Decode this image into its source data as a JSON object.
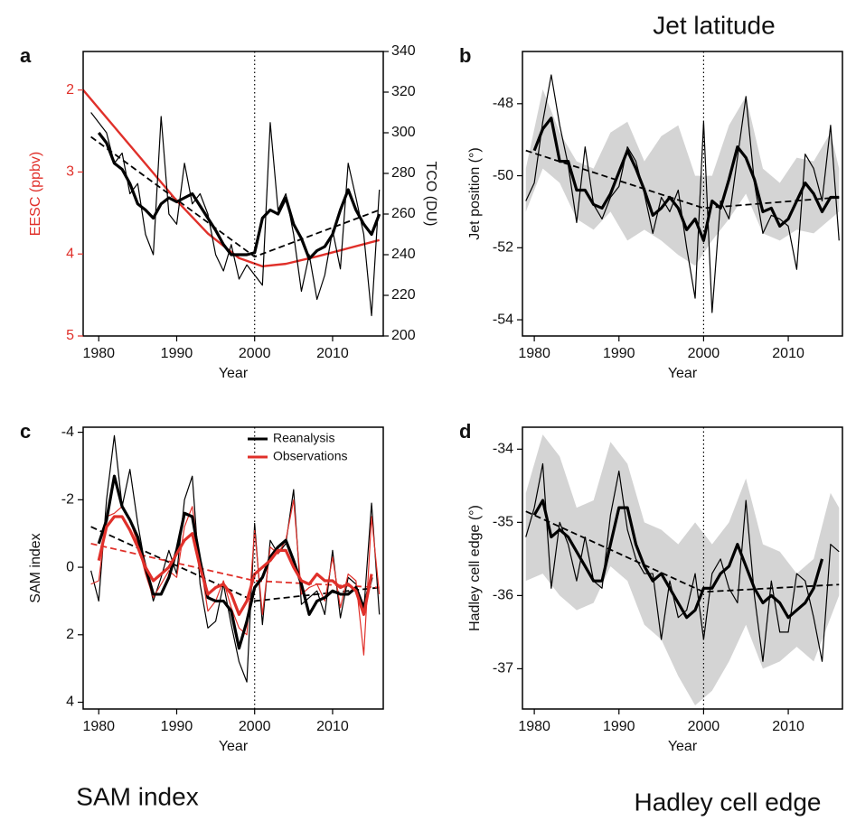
{
  "captions": [
    "Jet latitude",
    "SAM index",
    "Hadley cell edge"
  ],
  "chart_data": [
    {
      "type": "line",
      "label": "a",
      "xlabel": "Year",
      "ylabel": "EESC (ppbv)",
      "y2label": "TCO (DU)",
      "ycolor": "#e0302a",
      "xlim": [
        1978,
        2016.5
      ],
      "xticks": [
        1980,
        1990,
        2000,
        2010
      ],
      "ylim": [
        1.53,
        5
      ],
      "y_inverted": true,
      "yticks": [
        2,
        3,
        4,
        5
      ],
      "y2lim": [
        200,
        340
      ],
      "y2ticks": [
        200,
        220,
        240,
        260,
        280,
        300,
        320,
        340
      ],
      "vline": 2000,
      "x": [
        1979,
        1980,
        1981,
        1982,
        1983,
        1984,
        1985,
        1986,
        1987,
        1988,
        1989,
        1990,
        1991,
        1992,
        1993,
        1994,
        1995,
        1996,
        1997,
        1998,
        1999,
        2000,
        2001,
        2002,
        2003,
        2004,
        2005,
        2006,
        2007,
        2008,
        2009,
        2010,
        2011,
        2012,
        2013,
        2014,
        2015,
        2016
      ],
      "series": [
        {
          "style": "dashed",
          "color": "#000000",
          "axis": "y2",
          "x": [
            1979,
            2000,
            2016
          ],
          "values": [
            298,
            239,
            262
          ]
        },
        {
          "style": "solid",
          "color": "#e0302a",
          "x": [
            1978,
            1982,
            1986,
            1990,
            1994,
            1998,
            2001,
            2004,
            2008,
            2012,
            2016
          ],
          "values": [
            2.0,
            2.45,
            2.9,
            3.35,
            3.75,
            4.05,
            4.15,
            4.12,
            4.03,
            3.93,
            3.83
          ]
        },
        {
          "style": "thin",
          "color": "#000000",
          "axis": "y2",
          "values": [
            310,
            305,
            300,
            285,
            290,
            270,
            275,
            250,
            240,
            308,
            260,
            255,
            285,
            265,
            270,
            260,
            240,
            232,
            245,
            228,
            235,
            230,
            225,
            305,
            262,
            270,
            250,
            222,
            240,
            218,
            230,
            252,
            233,
            285,
            268,
            250,
            210,
            272
          ]
        },
        {
          "style": "thick",
          "color": "#000000",
          "axis": "y2",
          "values": [
            null,
            300,
            295,
            285,
            282,
            275,
            265,
            262,
            258,
            265,
            268,
            266,
            268,
            270,
            264,
            258,
            252,
            245,
            240,
            240,
            240,
            241,
            258,
            262,
            260,
            268,
            255,
            248,
            238,
            242,
            244,
            250,
            262,
            272,
            262,
            255,
            250,
            260
          ]
        }
      ]
    },
    {
      "type": "line",
      "label": "b",
      "xlabel": "Year",
      "ylabel": "Jet position (°)",
      "xlim": [
        1978.6,
        2016.4
      ],
      "xticks": [
        1980,
        1990,
        2000,
        2010
      ],
      "ylim": [
        -54.45,
        -46.55
      ],
      "yticks": [
        -54,
        -52,
        -50,
        -48
      ],
      "vline": 2000,
      "x": [
        1979,
        1980,
        1981,
        1982,
        1983,
        1984,
        1985,
        1986,
        1987,
        1988,
        1989,
        1990,
        1991,
        1992,
        1993,
        1994,
        1995,
        1996,
        1997,
        1998,
        1999,
        2000,
        2001,
        2002,
        2003,
        2004,
        2005,
        2006,
        2007,
        2008,
        2009,
        2010,
        2011,
        2012,
        2013,
        2014,
        2015,
        2016
      ],
      "bands": [
        {
          "color": "#d4d4d4",
          "x": [
            1979,
            1981,
            1983,
            1985,
            1987,
            1989,
            1991,
            1993,
            1995,
            1997,
            1999,
            2001,
            2003,
            2005,
            2007,
            2009,
            2011,
            2013,
            2015,
            2016
          ],
          "lower": [
            -51.0,
            -49.8,
            -50.2,
            -51.2,
            -51.5,
            -51.0,
            -51.8,
            -51.5,
            -51.8,
            -52.2,
            -52.5,
            -51.8,
            -51.2,
            -50.5,
            -51.6,
            -51.8,
            -51.5,
            -51.6,
            -51.2,
            -51.0
          ],
          "upper": [
            -49.8,
            -47.6,
            -48.8,
            -49.6,
            -49.8,
            -48.8,
            -48.5,
            -49.6,
            -48.9,
            -48.6,
            -50.0,
            -50.0,
            -48.6,
            -47.8,
            -49.8,
            -50.2,
            -49.5,
            -49.6,
            -48.8,
            -49.8
          ]
        }
      ],
      "series": [
        {
          "style": "dashed",
          "color": "#000000",
          "x": [
            1979,
            2000,
            2016
          ],
          "values": [
            -49.3,
            -50.9,
            -50.6
          ]
        },
        {
          "style": "thin",
          "color": "#000000",
          "values": [
            -50.7,
            -50.2,
            -48.5,
            -47.2,
            -48.6,
            -49.7,
            -51.3,
            -49.2,
            -50.8,
            -51.2,
            -50.6,
            -50.3,
            -49.2,
            -49.6,
            -50.5,
            -51.6,
            -50.6,
            -51.0,
            -50.4,
            -52.0,
            -53.4,
            -48.5,
            -53.8,
            -50.7,
            -51.2,
            -49.5,
            -47.8,
            -50.2,
            -51.6,
            -51.1,
            -51.2,
            -51.4,
            -52.6,
            -49.4,
            -49.8,
            -50.7,
            -48.6,
            -51.8
          ]
        },
        {
          "style": "thick",
          "color": "#000000",
          "values": [
            null,
            -49.3,
            -48.7,
            -48.4,
            -49.6,
            -49.6,
            -50.4,
            -50.4,
            -50.8,
            -50.9,
            -50.5,
            -49.9,
            -49.3,
            -49.8,
            -50.4,
            -51.1,
            -50.9,
            -50.6,
            -50.9,
            -51.5,
            -51.2,
            -51.8,
            -50.7,
            -50.9,
            -50.1,
            -49.2,
            -49.5,
            -50.1,
            -51.0,
            -50.9,
            -51.4,
            -51.2,
            -50.7,
            -50.2,
            -50.5,
            -51.0,
            -50.6,
            -50.6
          ]
        }
      ]
    },
    {
      "type": "line",
      "label": "c",
      "xlabel": "Year",
      "ylabel": "SAM index",
      "xlim": [
        1978,
        2016.5
      ],
      "xticks": [
        1980,
        1990,
        2000,
        2010
      ],
      "ylim": [
        -4.15,
        4.2
      ],
      "y_inverted": true,
      "yticks": [
        -4,
        -2,
        0,
        2,
        4
      ],
      "vline": 2000,
      "legend": "upper right",
      "x": [
        1979,
        1980,
        1981,
        1982,
        1983,
        1984,
        1985,
        1986,
        1987,
        1988,
        1989,
        1990,
        1991,
        1992,
        1993,
        1994,
        1995,
        1996,
        1997,
        1998,
        1999,
        2000,
        2001,
        2002,
        2003,
        2004,
        2005,
        2006,
        2007,
        2008,
        2009,
        2010,
        2011,
        2012,
        2013,
        2014,
        2015,
        2016
      ],
      "series": [
        {
          "style": "dashed",
          "color": "#000000",
          "x": [
            1979,
            2000,
            2016
          ],
          "values": [
            -1.2,
            1.0,
            0.6
          ]
        },
        {
          "style": "dashed",
          "color": "#e0302a",
          "x": [
            1979,
            2000,
            2016
          ],
          "values": [
            -0.7,
            0.4,
            0.6
          ]
        },
        {
          "style": "thin",
          "color": "#000000",
          "values": [
            0.1,
            1.0,
            -2.0,
            -3.9,
            -1.8,
            -2.9,
            -1.3,
            0.0,
            1.0,
            0.3,
            -0.5,
            0.2,
            -2.0,
            -2.7,
            0.5,
            1.8,
            1.6,
            0.5,
            1.7,
            2.8,
            3.4,
            -1.3,
            1.7,
            -0.8,
            -0.4,
            -0.7,
            -2.3,
            1.1,
            0.9,
            0.7,
            1.4,
            -0.5,
            1.5,
            0.3,
            0.5,
            1.3,
            -1.9,
            1.4
          ]
        },
        {
          "style": "thin",
          "color": "#e0302a",
          "values": [
            0.5,
            0.4,
            -1.5,
            -1.6,
            -1.8,
            -1.4,
            -0.7,
            0.2,
            0.9,
            0.5,
            0.1,
            0.3,
            -1.2,
            -1.8,
            -0.2,
            1.3,
            1.0,
            0.4,
            1.2,
            1.8,
            2.0,
            -1.1,
            1.4,
            -0.6,
            -0.4,
            -0.8,
            -2.0,
            0.8,
            0.6,
            0.5,
            1.0,
            -0.3,
            1.2,
            0.2,
            0.4,
            2.6,
            -1.5,
            0.8
          ]
        },
        {
          "style": "thick",
          "color": "#000000",
          "name": "Reanalysis",
          "values": [
            null,
            -0.7,
            -1.4,
            -2.7,
            -1.8,
            -1.4,
            -0.9,
            0.0,
            0.8,
            0.8,
            0.3,
            -0.5,
            -1.6,
            -1.5,
            -0.2,
            0.9,
            1.0,
            1.0,
            1.3,
            2.4,
            1.6,
            0.6,
            0.3,
            -0.3,
            -0.6,
            -0.8,
            -0.2,
            0.5,
            1.4,
            1.0,
            0.9,
            0.7,
            0.8,
            0.8,
            0.6,
            1.2,
            0.3,
            null
          ]
        },
        {
          "style": "thick",
          "color": "#e0302a",
          "name": "Observations",
          "values": [
            null,
            -0.2,
            -1.2,
            -1.5,
            -1.5,
            -1.1,
            -0.6,
            0.0,
            0.4,
            0.2,
            0.0,
            -0.4,
            -0.8,
            -1.0,
            0.0,
            0.8,
            0.6,
            0.5,
            0.8,
            1.4,
            1.0,
            0.2,
            0.0,
            -0.2,
            -0.5,
            -0.5,
            0.0,
            0.4,
            0.5,
            0.2,
            0.4,
            0.4,
            0.6,
            0.5,
            0.7,
            1.4,
            0.2,
            null
          ]
        }
      ]
    },
    {
      "type": "line",
      "label": "d",
      "xlabel": "Year",
      "ylabel": "Hadley cell edge (°)",
      "xlim": [
        1978.6,
        2016.4
      ],
      "xticks": [
        1980,
        1990,
        2000,
        2010
      ],
      "ylim": [
        -37.55,
        -33.7
      ],
      "yticks": [
        -37,
        -36,
        -35,
        -34
      ],
      "vline": 2000,
      "x": [
        1979,
        1980,
        1981,
        1982,
        1983,
        1984,
        1985,
        1986,
        1987,
        1988,
        1989,
        1990,
        1991,
        1992,
        1993,
        1994,
        1995,
        1996,
        1997,
        1998,
        1999,
        2000,
        2001,
        2002,
        2003,
        2004,
        2005,
        2006,
        2007,
        2008,
        2009,
        2010,
        2011,
        2012,
        2013,
        2014,
        2015,
        2016
      ],
      "bands": [
        {
          "color": "#d4d4d4",
          "x": [
            1979,
            1981,
            1983,
            1985,
            1987,
            1989,
            1991,
            1993,
            1995,
            1997,
            1999,
            2001,
            2003,
            2005,
            2007,
            2009,
            2011,
            2013,
            2015,
            2016
          ],
          "lower": [
            -35.8,
            -35.7,
            -36.0,
            -36.2,
            -36.1,
            -35.6,
            -35.8,
            -36.4,
            -36.6,
            -37.1,
            -37.5,
            -37.3,
            -36.9,
            -36.4,
            -37.0,
            -36.9,
            -36.7,
            -36.9,
            -36.3,
            -36.0
          ],
          "upper": [
            -34.6,
            -33.8,
            -34.1,
            -34.8,
            -34.7,
            -33.9,
            -34.2,
            -35.0,
            -35.1,
            -35.3,
            -35.0,
            -35.3,
            -35.0,
            -34.4,
            -35.3,
            -35.4,
            -35.7,
            -35.5,
            -34.6,
            -34.8
          ]
        }
      ],
      "series": [
        {
          "style": "dashed",
          "color": "#000000",
          "x": [
            1979,
            2000,
            2016
          ],
          "values": [
            -34.85,
            -35.95,
            -35.85
          ]
        },
        {
          "style": "thin",
          "color": "#000000",
          "values": [
            -35.2,
            -34.8,
            -34.2,
            -35.9,
            -35.0,
            -35.3,
            -35.8,
            -35.2,
            -35.8,
            -35.9,
            -34.9,
            -34.3,
            -35.1,
            -35.5,
            -35.7,
            -35.7,
            -36.6,
            -35.8,
            -36.3,
            -36.2,
            -35.7,
            -36.6,
            -35.7,
            -35.5,
            -35.9,
            -36.1,
            -34.7,
            -36.0,
            -36.9,
            -35.8,
            -36.5,
            -36.5,
            -35.7,
            -35.8,
            -36.3,
            -36.9,
            -35.3,
            -35.4
          ]
        },
        {
          "style": "thick",
          "color": "#000000",
          "values": [
            null,
            -34.9,
            -34.7,
            -35.2,
            -35.1,
            -35.2,
            -35.4,
            -35.6,
            -35.8,
            -35.8,
            -35.3,
            -34.8,
            -34.8,
            -35.3,
            -35.6,
            -35.8,
            -35.7,
            -35.9,
            -36.1,
            -36.3,
            -36.2,
            -35.9,
            -35.9,
            -35.7,
            -35.6,
            -35.3,
            -35.6,
            -35.9,
            -36.1,
            -36.0,
            -36.1,
            -36.3,
            -36.2,
            -36.1,
            -35.9,
            -35.5,
            null,
            null
          ]
        }
      ]
    }
  ]
}
